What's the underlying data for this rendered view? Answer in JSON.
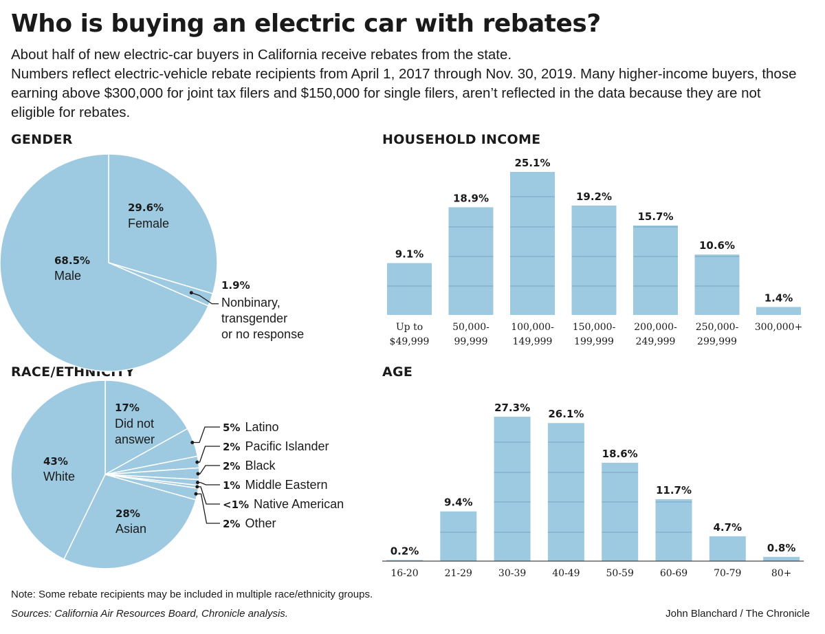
{
  "title": "Who is buying an electric car with rebates?",
  "intro": [
    "About half of new electric-car buyers in California receive rebates from the state.",
    "Numbers reflect electric-vehicle rebate recipients from April 1, 2017 through Nov. 30, 2019. Many higher-income buyers, those earning above $300,000 for joint tax filers and $150,000 for single filers, aren’t reflected in the data because they are not eligible for rebates."
  ],
  "colors": {
    "fill": "#9ecae1",
    "gridline": "#6a9bb8",
    "text": "#1a1a1a"
  },
  "chart_data": [
    {
      "type": "pie",
      "title": "GENDER",
      "slices": [
        {
          "value": 29.6,
          "pct_label": "29.6%",
          "name": "Female"
        },
        {
          "value": 1.9,
          "pct_label": "1.9%",
          "name": "Nonbinary, transgender or no response",
          "name_lines": [
            "Nonbinary,",
            "transgender",
            "or no response"
          ]
        },
        {
          "value": 68.5,
          "pct_label": "68.5%",
          "name": "Male"
        }
      ]
    },
    {
      "type": "bar",
      "title": "HOUSEHOLD INCOME",
      "categories": [
        [
          "Up to",
          "$49,999"
        ],
        [
          "50,000-",
          "99,999"
        ],
        [
          "100,000-",
          "149,999"
        ],
        [
          "150,000-",
          "199,999"
        ],
        [
          "200,000-",
          "249,999"
        ],
        [
          "250,000-",
          "299,999"
        ],
        [
          "300,000+"
        ]
      ],
      "values": [
        9.1,
        18.9,
        25.1,
        19.2,
        15.7,
        10.6,
        1.4
      ],
      "value_labels": [
        "9.1%",
        "18.9%",
        "25.1%",
        "19.2%",
        "15.7%",
        "10.6%",
        "1.4%"
      ],
      "unit": "%",
      "ylim": [
        0,
        25.1
      ]
    },
    {
      "type": "pie",
      "title": "RACE/ETHNICITY",
      "slices": [
        {
          "value": 17,
          "pct_label": "17%",
          "name": "Did not answer",
          "name_lines": [
            "Did not",
            "answer"
          ]
        },
        {
          "value": 5,
          "pct_label": "5%",
          "name": "Latino"
        },
        {
          "value": 2,
          "pct_label": "2%",
          "name": "Pacific Islander"
        },
        {
          "value": 2,
          "pct_label": "2%",
          "name": "Black"
        },
        {
          "value": 1,
          "pct_label": "1%",
          "name": "Middle Eastern"
        },
        {
          "value": 0.5,
          "pct_label": "<1%",
          "name": "Native American"
        },
        {
          "value": 2,
          "pct_label": "2%",
          "name": "Other"
        },
        {
          "value": 28,
          "pct_label": "28%",
          "name": "Asian"
        },
        {
          "value": 43,
          "pct_label": "43%",
          "name": "White"
        }
      ]
    },
    {
      "type": "bar",
      "title": "AGE",
      "categories": [
        [
          "16-20"
        ],
        [
          "21-29"
        ],
        [
          "30-39"
        ],
        [
          "40-49"
        ],
        [
          "50-59"
        ],
        [
          "60-69"
        ],
        [
          "70-79"
        ],
        [
          "80+"
        ]
      ],
      "values": [
        0.2,
        9.4,
        27.3,
        26.1,
        18.6,
        11.7,
        4.7,
        0.8
      ],
      "value_labels": [
        "0.2%",
        "9.4%",
        "27.3%",
        "26.1%",
        "18.6%",
        "11.7%",
        "4.7%",
        "0.8%"
      ],
      "unit": "%",
      "ylim": [
        0,
        27.3
      ]
    }
  ],
  "note": "Note: Some rebate recipients may be included in multiple race/ethnicity groups.",
  "sources": "Sources: California Air Resources Board, Chronicle analysis.",
  "credit": "John Blanchard / The Chronicle"
}
